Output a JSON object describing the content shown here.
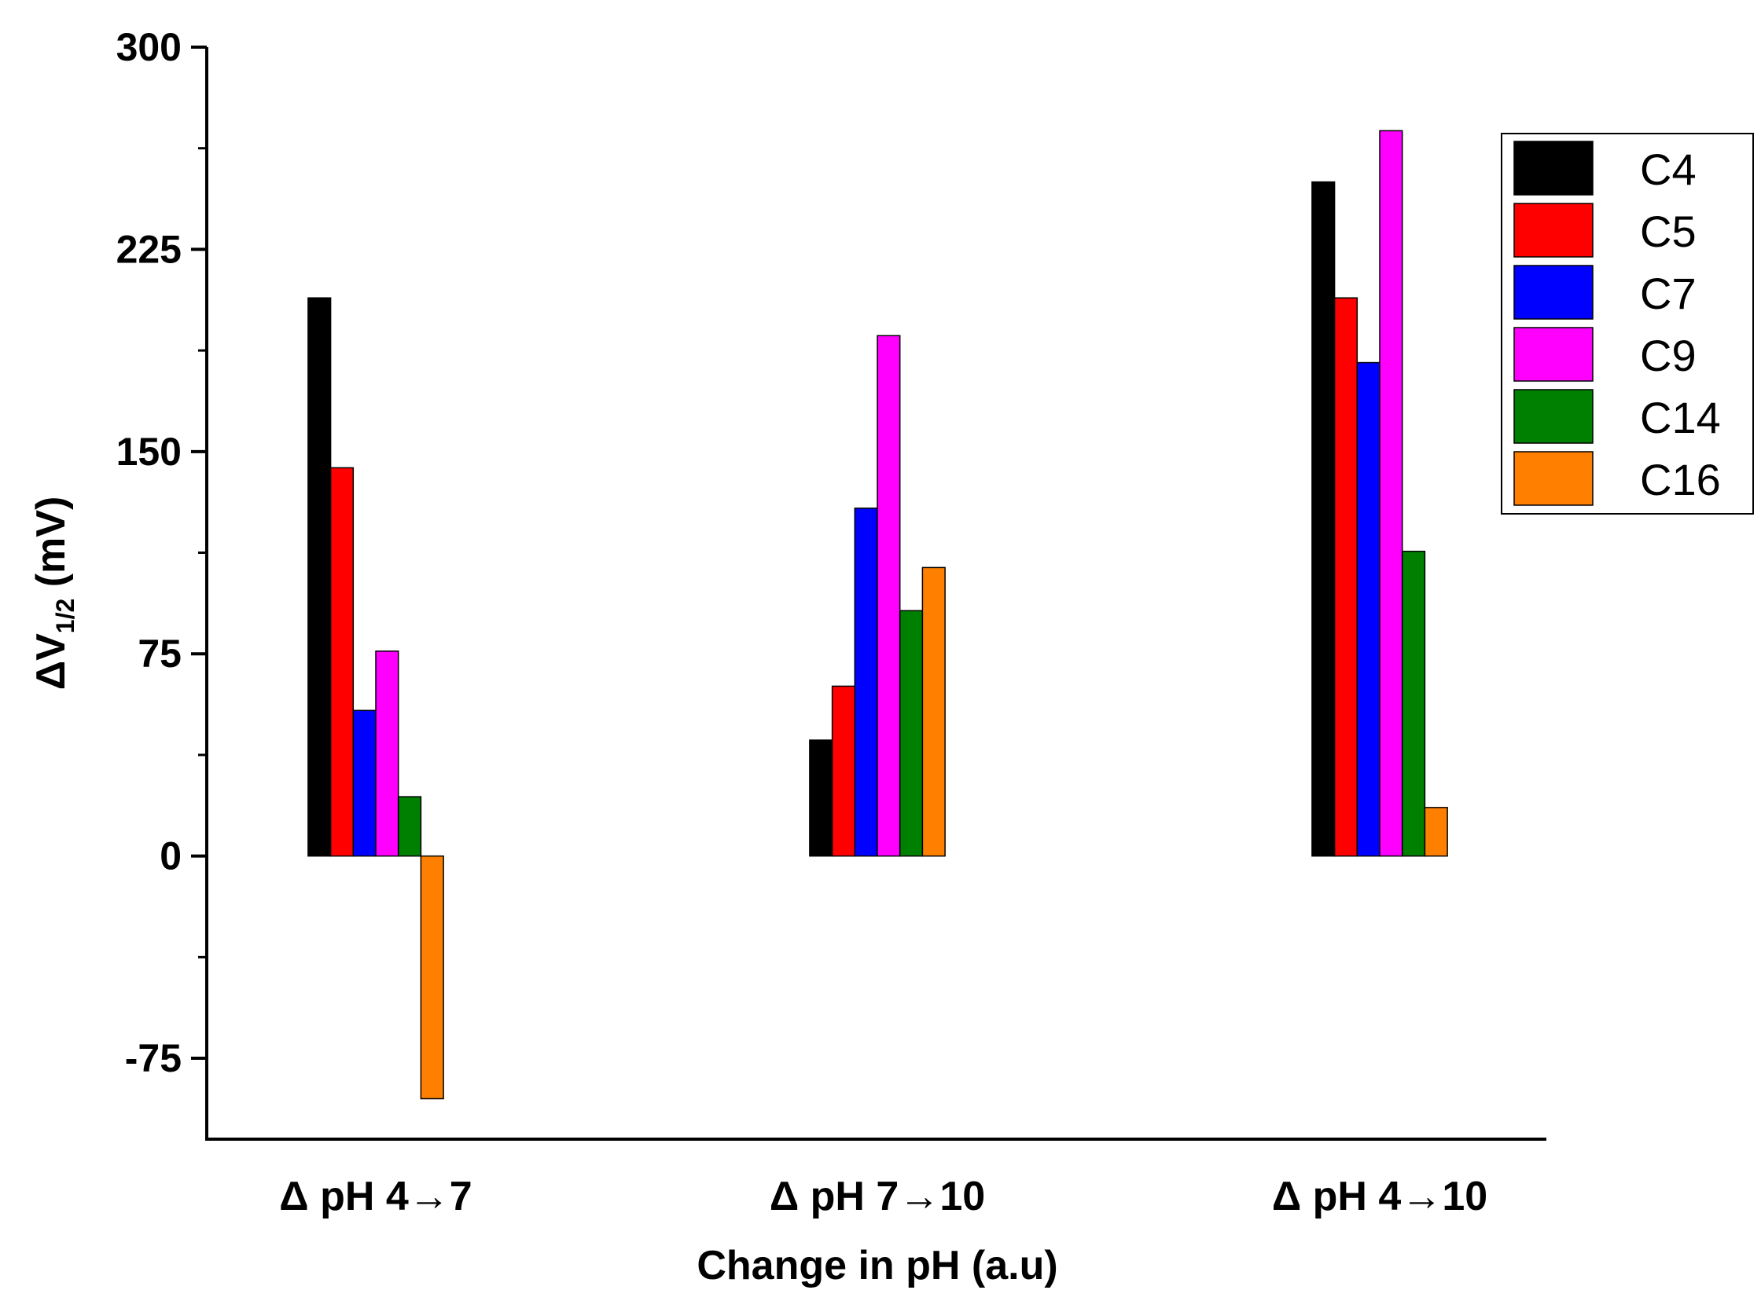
{
  "chart_data": {
    "type": "bar",
    "title": "",
    "xlabel": "Change in pH (a.u)",
    "ylabel": "ΔV1/2 (mV)",
    "ylabel_main": "ΔV",
    "ylabel_sub": "1/2",
    "ylabel_unit": " (mV)",
    "ylim": [
      -105,
      300
    ],
    "yticks": [
      300,
      225,
      150,
      75,
      0,
      -75
    ],
    "grid": false,
    "legend_position": "top-right",
    "categories": [
      "Δ pH 4→7",
      "Δ pH 7→10",
      "Δ pH 4→10"
    ],
    "series": [
      {
        "name": "C4",
        "color": "#000000",
        "values": [
          207,
          43,
          250
        ]
      },
      {
        "name": "C5",
        "color": "#ff0000",
        "values": [
          144,
          63,
          207
        ]
      },
      {
        "name": "C7",
        "color": "#0000ff",
        "values": [
          54,
          129,
          183
        ]
      },
      {
        "name": "C9",
        "color": "#ff00ff",
        "values": [
          76,
          193,
          269
        ]
      },
      {
        "name": "C14",
        "color": "#008000",
        "values": [
          22,
          91,
          113
        ]
      },
      {
        "name": "C16",
        "color": "#ff8000",
        "values": [
          -90,
          107,
          18
        ]
      }
    ]
  }
}
